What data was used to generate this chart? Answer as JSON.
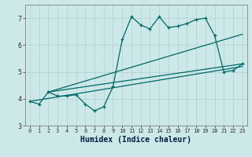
{
  "xlabel": "Humidex (Indice chaleur)",
  "bg_color": "#cce8e8",
  "line_color": "#006868",
  "xlim": [
    -0.5,
    23.5
  ],
  "ylim": [
    3.0,
    7.5
  ],
  "yticks": [
    3,
    4,
    5,
    6,
    7
  ],
  "xticks": [
    0,
    1,
    2,
    3,
    4,
    5,
    6,
    7,
    8,
    9,
    10,
    11,
    12,
    13,
    14,
    15,
    16,
    17,
    18,
    19,
    20,
    21,
    22,
    23
  ],
  "line1_x": [
    0,
    1,
    2,
    3,
    4,
    5,
    6,
    7,
    8,
    9,
    10,
    11,
    12,
    13,
    14,
    15,
    16,
    17,
    18,
    19,
    20,
    21,
    22,
    23
  ],
  "line1_y": [
    3.9,
    3.8,
    4.25,
    4.1,
    4.1,
    4.15,
    3.8,
    3.55,
    3.7,
    4.45,
    6.2,
    7.05,
    6.75,
    6.6,
    7.05,
    6.65,
    6.7,
    6.8,
    6.95,
    7.0,
    6.35,
    5.0,
    5.05,
    5.3
  ],
  "line2_x": [
    0,
    23
  ],
  "line2_y": [
    3.9,
    5.2
  ],
  "line3_x": [
    2,
    23
  ],
  "line3_y": [
    4.25,
    5.3
  ],
  "line4_x": [
    2,
    23
  ],
  "line4_y": [
    4.25,
    6.4
  ]
}
